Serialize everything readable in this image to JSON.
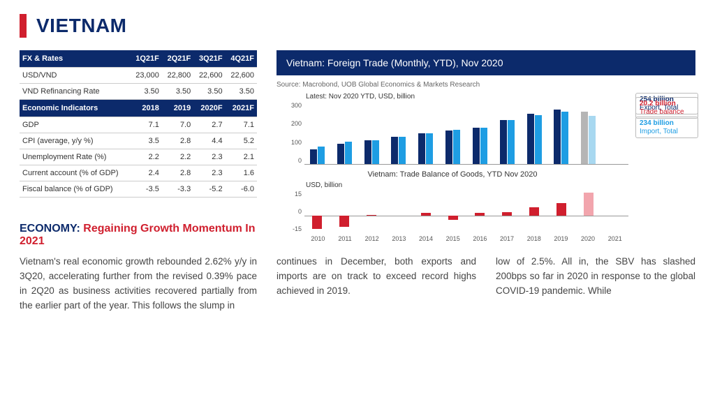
{
  "title": "VIETNAM",
  "fxTable": {
    "header": [
      "FX & Rates",
      "1Q21F",
      "2Q21F",
      "3Q21F",
      "4Q21F"
    ],
    "rows": [
      [
        "USD/VND",
        "23,000",
        "22,800",
        "22,600",
        "22,600"
      ],
      [
        "VND Refinancing Rate",
        "3.50",
        "3.50",
        "3.50",
        "3.50"
      ]
    ]
  },
  "econTable": {
    "header": [
      "Economic Indicators",
      "2018",
      "2019",
      "2020F",
      "2021F"
    ],
    "rows": [
      [
        "GDP",
        "7.1",
        "7.0",
        "2.7",
        "7.1"
      ],
      [
        "CPI (average, y/y %)",
        "3.5",
        "2.8",
        "4.4",
        "5.2"
      ],
      [
        "Unemployment Rate (%)",
        "2.2",
        "2.2",
        "2.3",
        "2.1"
      ],
      [
        "Current account (% of GDP)",
        "2.4",
        "2.8",
        "2.3",
        "1.6"
      ],
      [
        "Fiscal balance (% of GDP)",
        "-3.5",
        "-3.3",
        "-5.2",
        "-6.0"
      ]
    ]
  },
  "economy": {
    "label": "ECONOMY:",
    "subtitle": "Regaining Growth Momentum In 2021",
    "para1": "Vietnam's real economic growth rebounded 2.62% y/y in 3Q20, accelerating further from the revised 0.39% pace in 2Q20 as business activities recovered partially from the earlier part of the year. This follows the slump in"
  },
  "chart": {
    "titleBar": "Vietnam: Foreign Trade (Monthly, YTD), Nov 2020",
    "source": "Source: Macrobond, UOB Global Economics & Markets Research",
    "topLabel": "Latest: Nov 2020 YTD, USD, billion",
    "chart1": {
      "ymax": 300,
      "yticks": [
        "300",
        "200",
        "100",
        "0"
      ],
      "colors": {
        "export": "#0c2a6b",
        "import": "#1e9de3",
        "exportLast": "#b5b5b5",
        "importLast": "#a8d8f0"
      },
      "years": [
        "2010",
        "2011",
        "2012",
        "2013",
        "2014",
        "2015",
        "2016",
        "2017",
        "2018",
        "2019",
        "2020",
        "2021"
      ],
      "exportVals": [
        72,
        97,
        115,
        132,
        150,
        162,
        177,
        214,
        244,
        264,
        254,
        0
      ],
      "importVals": [
        85,
        107,
        114,
        132,
        148,
        166,
        175,
        211,
        237,
        253,
        234,
        0
      ],
      "calloutExport": {
        "v": "254 billion",
        "t": "Export, Total",
        "color": "#0c2a6b"
      },
      "calloutImport": {
        "v": "234 billion",
        "t": "Import, Total",
        "color": "#1e9de3"
      }
    },
    "chart2": {
      "title": "Vietnam: Trade Balance of Goods, YTD Nov 2020",
      "ylabel": "USD, billion",
      "yticks": [
        "15",
        "0",
        "-15"
      ],
      "ymax": 22,
      "ymin": -15,
      "colors": {
        "bar": "#d01f2e",
        "last": "#f2a5ad"
      },
      "vals": [
        -12,
        -10,
        0.5,
        0,
        2.5,
        -4,
        2,
        3,
        7,
        11,
        20.2,
        0
      ],
      "callout": {
        "v": "20.2 billion",
        "t": "Trade balance",
        "color": "#d01f2e"
      }
    }
  },
  "bottomCols": {
    "c1": "continues in December, both exports and imports are on track to exceed record highs achieved in 2019.",
    "c2": "low of 2.5%. All in, the SBV has slashed 200bps so far in 2020 in response to the global COVID-19 pandemic. While"
  }
}
